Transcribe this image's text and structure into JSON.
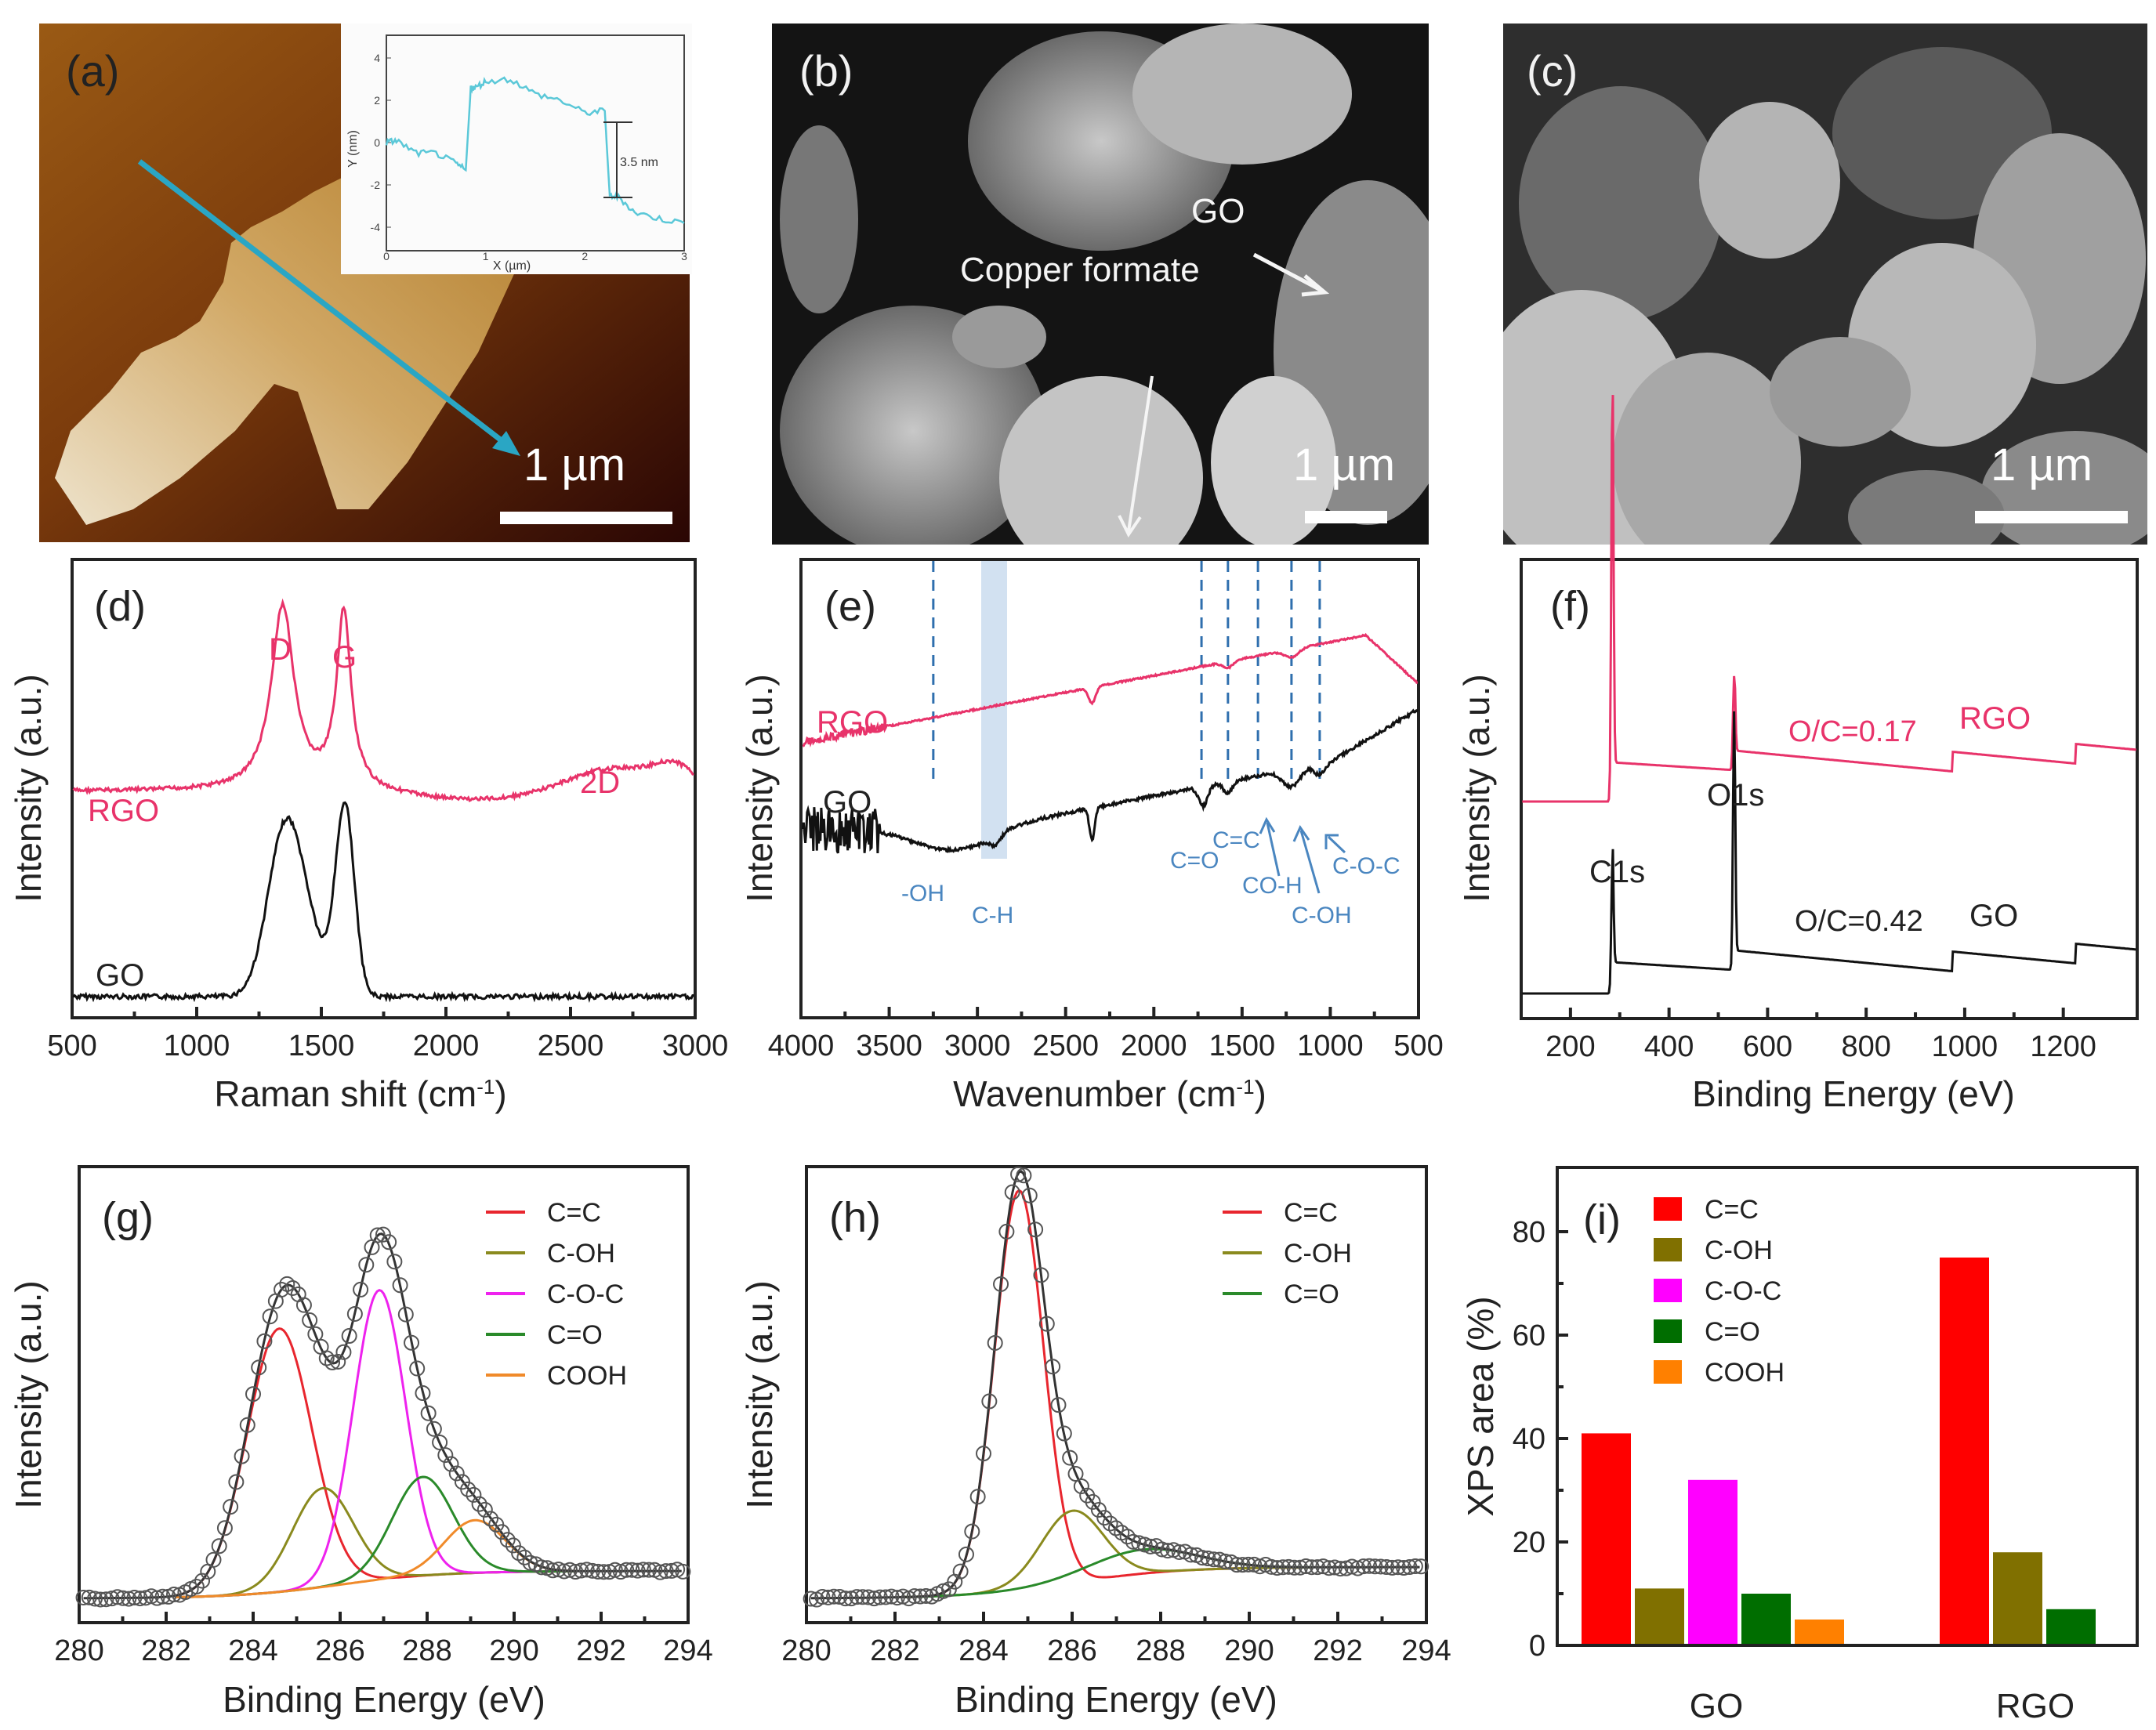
{
  "figure": {
    "panels": {
      "a": {
        "label": "(a)",
        "scale_label": "1 µm",
        "inset": {
          "xlabel": "X (µm)",
          "ylabel": "Y (nm)",
          "xticks": [
            "0",
            "1",
            "2",
            "3"
          ],
          "yticks": [
            "4",
            "2",
            "0",
            "-2",
            "-4"
          ],
          "step_label": "3.5 nm",
          "line_color": "#5bc8d8"
        },
        "arrow_color": "#2aa6c4"
      },
      "b": {
        "label": "(b)",
        "scale_label": "1 µm",
        "annotations": [
          "GO",
          "Copper formate"
        ]
      },
      "c": {
        "label": "(c)",
        "scale_label": "1 µm"
      },
      "d": {
        "label": "(d)"
      },
      "e": {
        "label": "(e)"
      },
      "f": {
        "label": "(f)"
      },
      "g": {
        "label": "(g)"
      },
      "h": {
        "label": "(h)"
      },
      "i": {
        "label": "(i)"
      }
    }
  },
  "chart_data": [
    {
      "panel": "a-inset",
      "type": "line",
      "title": "",
      "xlabel": "X (µm)",
      "ylabel": "Y (nm)",
      "xlim": [
        0,
        3
      ],
      "ylim": [
        -5,
        5
      ],
      "x": [
        0,
        0.1,
        0.3,
        0.5,
        0.7,
        0.8,
        0.85,
        0.9,
        1.0,
        1.25,
        1.5,
        1.75,
        2.0,
        2.2,
        2.25,
        2.35,
        2.5,
        2.75,
        3.0
      ],
      "y": [
        0,
        0.1,
        -0.5,
        -0.5,
        -1.0,
        -1.3,
        2.6,
        2.6,
        2.9,
        3.0,
        2.3,
        2.0,
        1.4,
        1.5,
        -2.5,
        -2.6,
        -3.3,
        -3.6,
        -3.8
      ],
      "annotations": [
        "3.5 nm"
      ]
    },
    {
      "panel": "d",
      "type": "line",
      "title": "",
      "xlabel": "Raman shift (cm-1)",
      "ylabel": "Intensity (a.u.)",
      "xlim": [
        500,
        3000
      ],
      "xticks": [
        500,
        1000,
        1500,
        2000,
        2500,
        3000
      ],
      "series": [
        {
          "name": "RGO",
          "color": "#e8336a",
          "peaks": [
            {
              "x": 1345,
              "label": "D"
            },
            {
              "x": 1590,
              "label": "G"
            },
            {
              "x": 2680,
              "label": "2D"
            }
          ]
        },
        {
          "name": "GO",
          "color": "#111111",
          "peaks": [
            {
              "x": 1350
            },
            {
              "x": 1595
            }
          ]
        }
      ],
      "annotations": [
        "D",
        "G",
        "2D",
        "RGO",
        "GO"
      ]
    },
    {
      "panel": "e",
      "type": "line",
      "title": "",
      "xlabel": "Wavenumber (cm-1)",
      "ylabel": "Intensity (a.u.)",
      "xlim": [
        4000,
        500
      ],
      "xticks": [
        4000,
        3500,
        3000,
        2500,
        2000,
        1500,
        1000,
        500
      ],
      "series": [
        {
          "name": "RGO",
          "color": "#e8336a"
        },
        {
          "name": "GO",
          "color": "#111111"
        }
      ],
      "dashed_lines": [
        3250,
        1730,
        1580,
        1410,
        1220,
        1060
      ],
      "shaded_band": [
        2960,
        2820
      ],
      "band_labels": [
        "-OH",
        "C-H",
        "C=O",
        "C=C",
        "CO-H",
        "C-OH",
        "C-O-C"
      ],
      "annotation_color": "#4a86c0"
    },
    {
      "panel": "f",
      "type": "line",
      "title": "",
      "xlabel": "Binding Energy (eV)",
      "ylabel": "Intensity (a.u.)",
      "xlim": [
        100,
        1350
      ],
      "xticks": [
        200,
        400,
        600,
        800,
        1000,
        1200
      ],
      "series": [
        {
          "name": "RGO",
          "color": "#e8336a",
          "ratio_label": "O/C=0.17"
        },
        {
          "name": "GO",
          "color": "#111111",
          "ratio_label": "O/C=0.42"
        }
      ],
      "peaks": [
        {
          "x": 284,
          "label": "C1s"
        },
        {
          "x": 532,
          "label": "O1s"
        }
      ]
    },
    {
      "panel": "g",
      "type": "line",
      "title": "",
      "xlabel": "Binding Energy (eV)",
      "ylabel": "Intensity (a.u.)",
      "xlim": [
        280,
        294
      ],
      "xticks": [
        280,
        282,
        284,
        286,
        288,
        290,
        292,
        294
      ],
      "series": [
        {
          "name": "C=C",
          "color": "#e8262e",
          "center": 284.6,
          "height": 0.8,
          "width": 0.75
        },
        {
          "name": "C-OH",
          "color": "#8a8a1e",
          "center": 285.6,
          "height": 0.3,
          "width": 0.7
        },
        {
          "name": "C-O-C",
          "color": "#ee22ee",
          "center": 286.9,
          "height": 0.88,
          "width": 0.6
        },
        {
          "name": "C=O",
          "color": "#2a8a2a",
          "center": 287.9,
          "height": 0.3,
          "width": 0.7
        },
        {
          "name": "COOH",
          "color": "#f08a2a",
          "center": 289.1,
          "height": 0.16,
          "width": 0.7
        }
      ]
    },
    {
      "panel": "h",
      "type": "line",
      "title": "",
      "xlabel": "Binding Energy (eV)",
      "ylabel": "Intensity (a.u.)",
      "xlim": [
        280,
        294
      ],
      "xticks": [
        280,
        282,
        284,
        286,
        288,
        290,
        292,
        294
      ],
      "series": [
        {
          "name": "C=C",
          "color": "#e8262e",
          "center": 284.8,
          "height": 1.0,
          "width": 0.55
        },
        {
          "name": "C-OH",
          "color": "#8a8a1e",
          "center": 286.0,
          "height": 0.18,
          "width": 0.7
        },
        {
          "name": "C=O",
          "color": "#2a8a2a",
          "center": 287.6,
          "height": 0.06,
          "width": 1.2
        }
      ]
    },
    {
      "panel": "i",
      "type": "bar",
      "title": "",
      "xlabel": "",
      "ylabel": "XPS area (%)",
      "ylim": [
        0,
        92
      ],
      "yticks": [
        0,
        20,
        40,
        60,
        80
      ],
      "categories": [
        "GO",
        "RGO"
      ],
      "series": [
        {
          "name": "C=C",
          "color": "#ff0000",
          "values": [
            41,
            75
          ]
        },
        {
          "name": "C-OH",
          "color": "#807000",
          "values": [
            11,
            18
          ]
        },
        {
          "name": "C-O-C",
          "color": "#ff00ff",
          "values": [
            32,
            null
          ]
        },
        {
          "name": "C=O",
          "color": "#006e00",
          "values": [
            10,
            7
          ]
        },
        {
          "name": "COOH",
          "color": "#ff8000",
          "values": [
            5,
            null
          ]
        }
      ]
    }
  ],
  "text": {
    "d": {
      "xlabel": "Raman shift (cm",
      "xlabel_sup": "-1",
      "xlabel_end": ")",
      "ylabel": "Intensity (a.u.)",
      "D": "D",
      "G": "G",
      "2D": "2D",
      "rgo": "RGO",
      "go": "GO"
    },
    "e": {
      "xlabel": "Wavenumber (cm",
      "xlabel_sup": "-1",
      "xlabel_end": ")",
      "ylabel": "Intensity (a.u.)",
      "rgo": "RGO",
      "go": "GO",
      "oh": "-OH",
      "ch": "C-H",
      "co": "C=O",
      "cc": "C=C",
      "coh": "CO-H",
      "c_oh": "C-OH",
      "coc": "C-O-C"
    },
    "f": {
      "xlabel": "Binding Energy (eV)",
      "ylabel": "Intensity (a.u.)",
      "rgo": "RGO",
      "go": "GO",
      "oc_rgo": "O/C=0.17",
      "oc_go": "O/C=0.42",
      "c1s": "C1s",
      "o1s": "O1s"
    },
    "g": {
      "xlabel": "Binding Energy (eV)",
      "ylabel": "Intensity (a.u.)"
    },
    "h": {
      "xlabel": "Binding Energy (eV)",
      "ylabel": "Intensity (a.u.)"
    },
    "i": {
      "ylabel": "XPS area (%)"
    }
  }
}
